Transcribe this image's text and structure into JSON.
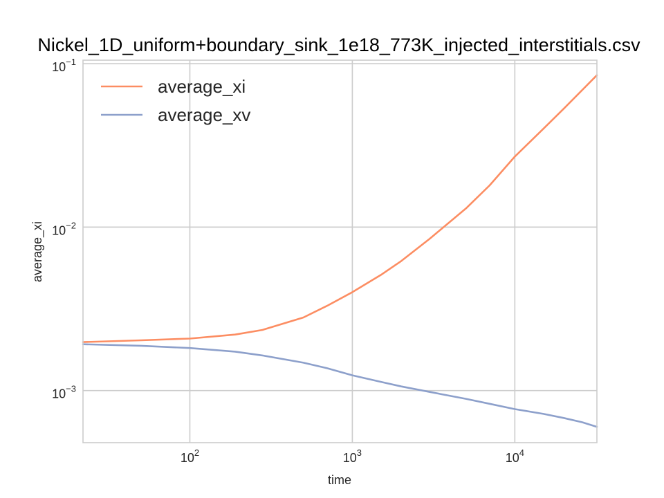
{
  "chart_data": {
    "type": "line",
    "title": "Nickel_1D_uniform+boundary_sink_1e18_773K_injected_interstitials.csv",
    "xlabel": "time",
    "ylabel": "average_xi",
    "xscale": "log",
    "yscale": "log",
    "xlim": [
      22,
      32000
    ],
    "ylim": [
      0.00048,
      0.105
    ],
    "grid": true,
    "legend_position": "top-left",
    "x_ticks": [
      {
        "value": 100,
        "base": "10",
        "exp": "2"
      },
      {
        "value": 1000,
        "base": "10",
        "exp": "3"
      },
      {
        "value": 10000,
        "base": "10",
        "exp": "4"
      }
    ],
    "y_ticks": [
      {
        "value": 0.001,
        "base": "10",
        "exp": "−3"
      },
      {
        "value": 0.01,
        "base": "10",
        "exp": "−2"
      },
      {
        "value": 0.1,
        "base": "10",
        "exp": "−1"
      }
    ],
    "series": [
      {
        "name": "average_xi",
        "color": "#fc8d62",
        "x": [
          22,
          50,
          100,
          190,
          280,
          500,
          700,
          1000,
          1500,
          2000,
          3000,
          5000,
          7000,
          10000,
          15000,
          20000,
          32000
        ],
        "y": [
          0.00198,
          0.00203,
          0.00208,
          0.0022,
          0.00235,
          0.0028,
          0.0033,
          0.004,
          0.0051,
          0.0062,
          0.0085,
          0.013,
          0.018,
          0.027,
          0.04,
          0.053,
          0.085
        ]
      },
      {
        "name": "average_xv",
        "color": "#8da0cb",
        "x": [
          22,
          50,
          100,
          190,
          280,
          500,
          700,
          1000,
          1500,
          2000,
          3000,
          5000,
          7000,
          10000,
          15000,
          20000,
          26000,
          32000
        ],
        "y": [
          0.00192,
          0.00188,
          0.00182,
          0.00173,
          0.00164,
          0.00148,
          0.00137,
          0.00124,
          0.00113,
          0.00106,
          0.00098,
          0.00089,
          0.00083,
          0.00077,
          0.00072,
          0.00068,
          0.00064,
          0.0006
        ]
      }
    ]
  }
}
